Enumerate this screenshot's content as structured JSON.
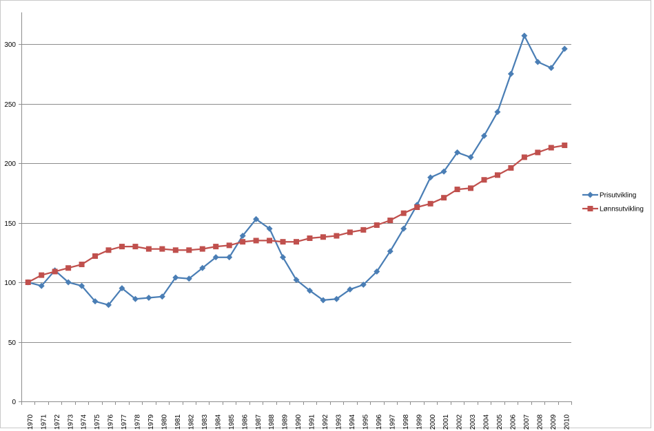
{
  "chart_data": {
    "type": "line",
    "title": "",
    "xlabel": "",
    "ylabel": "",
    "ylim": [
      0,
      300
    ],
    "yticks": [
      0,
      50,
      100,
      150,
      200,
      250,
      300
    ],
    "grid": true,
    "legend_position": "right",
    "categories": [
      "1970",
      "1971",
      "1972",
      "1973",
      "1974",
      "1975",
      "1976",
      "1977",
      "1978",
      "1979",
      "1980",
      "1981",
      "1982",
      "1983",
      "1984",
      "1985",
      "1986",
      "1987",
      "1988",
      "1989",
      "1990",
      "1991",
      "1992",
      "1993",
      "1994",
      "1995",
      "1996",
      "1997",
      "1998",
      "1999",
      "2000",
      "2001",
      "2002",
      "2003",
      "2004",
      "2005",
      "2006",
      "2007",
      "2008",
      "2009",
      "2010"
    ],
    "series": [
      {
        "name": "Prisutvikling",
        "color": "#4a7eb5",
        "marker": "diamond",
        "values": [
          100,
          97,
          110,
          100,
          97,
          84,
          81,
          95,
          86,
          87,
          88,
          104,
          103,
          112,
          121,
          121,
          139,
          153,
          145,
          121,
          102,
          93,
          85,
          86,
          94,
          98,
          109,
          126,
          145,
          165,
          188,
          193,
          209,
          205,
          223,
          243,
          275,
          307,
          285,
          280,
          296
        ]
      },
      {
        "name": "Lønnsutvikling",
        "color": "#c0504d",
        "marker": "square",
        "values": [
          100,
          106,
          109,
          112,
          115,
          122,
          127,
          130,
          130,
          128,
          128,
          127,
          127,
          128,
          130,
          131,
          134,
          135,
          135,
          134,
          134,
          137,
          138,
          139,
          142,
          144,
          148,
          152,
          158,
          163,
          166,
          171,
          178,
          179,
          186,
          190,
          196,
          205,
          209,
          213,
          215
        ]
      }
    ]
  }
}
